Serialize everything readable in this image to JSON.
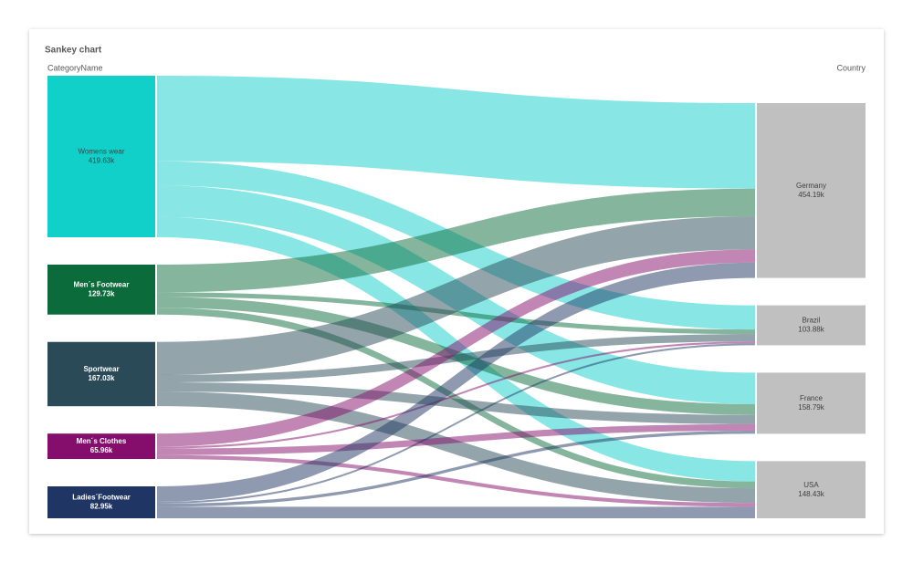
{
  "chart_data": {
    "type": "sankey",
    "title": "Sankey chart",
    "source_label": "CategoryName",
    "target_label": "Country",
    "sources": [
      {
        "name": "Womens wear",
        "value": 419.63,
        "value_label": "419.63k",
        "color": "#11d0c9",
        "text_color": "#2b4a4a"
      },
      {
        "name": "Men´s Footwear",
        "value": 129.73,
        "value_label": "129.73k",
        "color": "#0b6b3a",
        "text_color": "#ffffff"
      },
      {
        "name": "Sportwear",
        "value": 167.03,
        "value_label": "167.03k",
        "color": "#2a4a58",
        "text_color": "#ffffff"
      },
      {
        "name": "Men´s Clothes",
        "value": 65.96,
        "value_label": "65.96k",
        "color": "#850d6b",
        "text_color": "#ffffff"
      },
      {
        "name": "Ladies´Footwear",
        "value": 82.95,
        "value_label": "82.95k",
        "color": "#1f3563",
        "text_color": "#ffffff"
      }
    ],
    "targets": [
      {
        "name": "Germany",
        "value": 454.19,
        "value_label": "454.19k",
        "color": "#c0c0c0",
        "text_color": "#404040"
      },
      {
        "name": "Brazil",
        "value": 103.88,
        "value_label": "103.88k",
        "color": "#c0c0c0",
        "text_color": "#404040"
      },
      {
        "name": "France",
        "value": 158.79,
        "value_label": "158.79k",
        "color": "#c0c0c0",
        "text_color": "#404040"
      },
      {
        "name": "USA",
        "value": 148.43,
        "value_label": "148.43k",
        "color": "#c0c0c0",
        "text_color": "#404040"
      }
    ],
    "links": [
      {
        "source": "Womens wear",
        "target": "Germany",
        "value": 222.19
      },
      {
        "source": "Womens wear",
        "target": "Brazil",
        "value": 62.88
      },
      {
        "source": "Womens wear",
        "target": "France",
        "value": 81.79
      },
      {
        "source": "Womens wear",
        "target": "USA",
        "value": 52.77
      },
      {
        "source": "Men´s Footwear",
        "target": "Germany",
        "value": 72
      },
      {
        "source": "Men´s Footwear",
        "target": "Brazil",
        "value": 12
      },
      {
        "source": "Men´s Footwear",
        "target": "France",
        "value": 28
      },
      {
        "source": "Men´s Footwear",
        "target": "USA",
        "value": 17.73
      },
      {
        "source": "Sportwear",
        "target": "Germany",
        "value": 86
      },
      {
        "source": "Sportwear",
        "target": "Brazil",
        "value": 19
      },
      {
        "source": "Sportwear",
        "target": "France",
        "value": 24
      },
      {
        "source": "Sportwear",
        "target": "USA",
        "value": 38.03
      },
      {
        "source": "Men´s Clothes",
        "target": "Germany",
        "value": 34
      },
      {
        "source": "Men´s Clothes",
        "target": "Brazil",
        "value": 5
      },
      {
        "source": "Men´s Clothes",
        "target": "France",
        "value": 17
      },
      {
        "source": "Men´s Clothes",
        "target": "USA",
        "value": 9.96
      },
      {
        "source": "Ladies´Footwear",
        "target": "Germany",
        "value": 40
      },
      {
        "source": "Ladies´Footwear",
        "target": "Brazil",
        "value": 5
      },
      {
        "source": "Ladies´Footwear",
        "target": "France",
        "value": 8
      },
      {
        "source": "Ladies´Footwear",
        "target": "USA",
        "value": 29.95
      }
    ]
  }
}
